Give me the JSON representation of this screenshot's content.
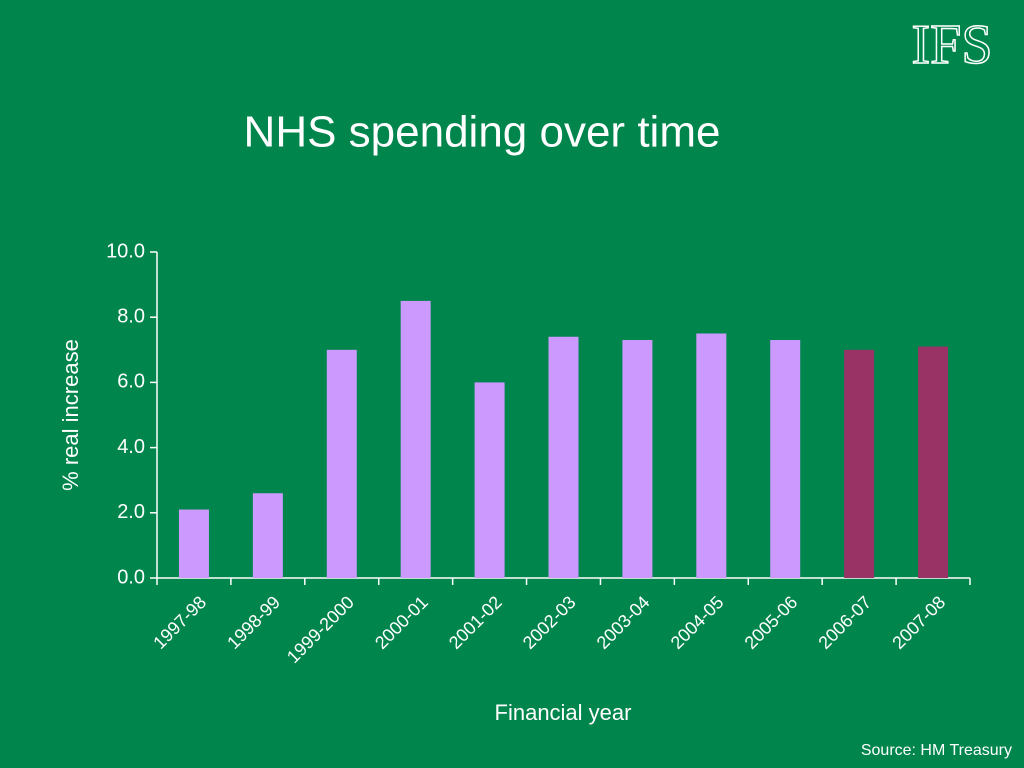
{
  "logo": "IFS",
  "source": "Source: HM Treasury",
  "chart_data": {
    "type": "bar",
    "title": "NHS spending over time",
    "x_label": "Financial year",
    "y_label": "% real increase",
    "categories": [
      "1997-98",
      "1998-99",
      "1999-2000",
      "2000-01",
      "2001-02",
      "2002-03",
      "2003-04",
      "2004-05",
      "2005-06",
      "2006-07",
      "2007-08"
    ],
    "values": [
      2.1,
      2.6,
      7.0,
      8.5,
      6.0,
      7.4,
      7.3,
      7.5,
      7.3,
      7.0,
      7.1
    ],
    "colors": [
      "#cc99ff",
      "#cc99ff",
      "#cc99ff",
      "#cc99ff",
      "#cc99ff",
      "#cc99ff",
      "#cc99ff",
      "#cc99ff",
      "#cc99ff",
      "#993366",
      "#993366"
    ],
    "ylim": [
      0,
      10
    ],
    "yticks": [
      {
        "value": 0,
        "label": "0.0"
      },
      {
        "value": 2,
        "label": "2.0"
      },
      {
        "value": 4,
        "label": "4.0"
      },
      {
        "value": 6,
        "label": "6.0"
      },
      {
        "value": 8,
        "label": "8.0"
      },
      {
        "value": 10,
        "label": "10.0"
      }
    ],
    "grid": false
  }
}
